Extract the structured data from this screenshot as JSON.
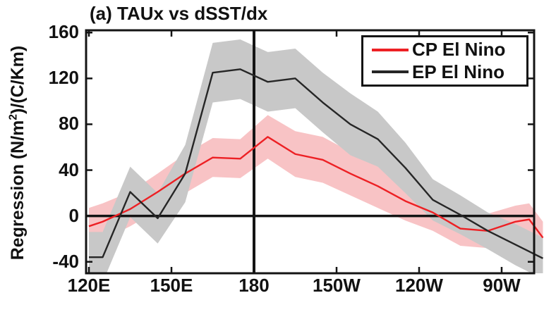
{
  "chart_data": {
    "type": "line",
    "title": "(a) TAUx vs dSST/dx",
    "ylabel": {
      "prefix": "Regression (N/m",
      "sup": "2",
      "suffix": ")/(C/Km)"
    },
    "x_lon_east": [
      120,
      125,
      135,
      145,
      155,
      165,
      175,
      185,
      195,
      205,
      215,
      225,
      235,
      245,
      255,
      265,
      275,
      280,
      285
    ],
    "series": [
      {
        "name": "CP El Nino",
        "color": "#ed2024",
        "band_color": "#f8c3c5",
        "values": [
          -9,
          -5,
          6,
          21,
          37,
          51,
          50,
          69,
          54,
          49,
          37,
          26,
          13,
          3,
          -11,
          -13,
          -5,
          -3,
          -19
        ],
        "band_halfwidth": [
          16,
          16,
          15,
          16,
          17,
          17,
          17,
          19,
          20,
          20,
          19,
          19,
          17,
          16,
          15,
          15,
          14,
          14,
          14
        ]
      },
      {
        "name": "EP El Nino",
        "color": "#262626",
        "band_color": "#c8c8c8",
        "values": [
          -36,
          -36,
          21,
          -2,
          37,
          125,
          128,
          117,
          120,
          99,
          80,
          67,
          42,
          14,
          1,
          -13,
          -25,
          -31,
          -37
        ],
        "band_halfwidth": [
          22,
          22,
          22,
          22,
          25,
          26,
          26,
          26,
          26,
          26,
          27,
          24,
          22,
          18,
          17,
          16,
          18,
          18,
          18
        ]
      }
    ],
    "xticks": [
      {
        "lon": 120,
        "label": "120E"
      },
      {
        "lon": 150,
        "label": "150E"
      },
      {
        "lon": 180,
        "label": "180"
      },
      {
        "lon": 210,
        "label": "150W"
      },
      {
        "lon": 240,
        "label": "120W"
      },
      {
        "lon": 270,
        "label": "90W"
      }
    ],
    "yticks": [
      160,
      120,
      80,
      40,
      0,
      -40
    ],
    "xlim": [
      118.97,
      281.8
    ],
    "ylim": [
      -50,
      162
    ],
    "zero_line": true,
    "vline_at": 180,
    "axis_color": "#141414",
    "legend_position": "top-right",
    "grid": false
  }
}
